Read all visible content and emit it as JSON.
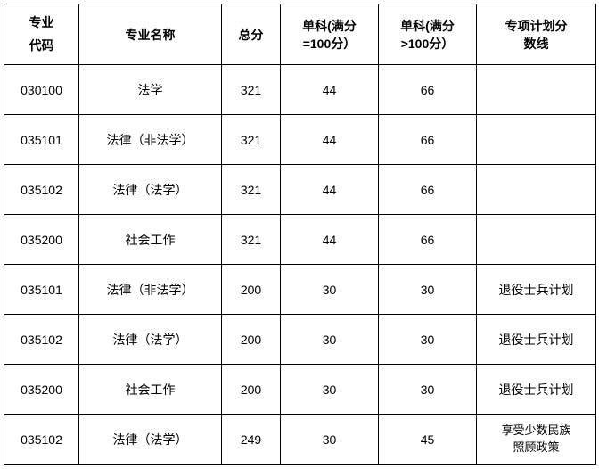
{
  "table": {
    "columns": [
      {
        "label_line1": "专业",
        "label_line2": "代码"
      },
      {
        "label": "专业名称"
      },
      {
        "label": "总分"
      },
      {
        "label_line1": "单科(满分",
        "label_line2": "=100分）"
      },
      {
        "label_line1": "单科(满分",
        "label_line2": ">100分）"
      },
      {
        "label_line1": "专项计划分",
        "label_line2": "数线"
      }
    ],
    "rows": [
      {
        "code": "030100",
        "name": "法学",
        "total": "321",
        "sub1": "44",
        "sub2": "66",
        "plan": ""
      },
      {
        "code": "035101",
        "name": "法律（非法学）",
        "total": "321",
        "sub1": "44",
        "sub2": "66",
        "plan": ""
      },
      {
        "code": "035102",
        "name": "法律（法学）",
        "total": "321",
        "sub1": "44",
        "sub2": "66",
        "plan": ""
      },
      {
        "code": "035200",
        "name": "社会工作",
        "total": "321",
        "sub1": "44",
        "sub2": "66",
        "plan": ""
      },
      {
        "code": "035101",
        "name": "法律（非法学）",
        "total": "200",
        "sub1": "30",
        "sub2": "30",
        "plan": "退役士兵计划"
      },
      {
        "code": "035102",
        "name": "法律（法学）",
        "total": "200",
        "sub1": "30",
        "sub2": "30",
        "plan": "退役士兵计划"
      },
      {
        "code": "035200",
        "name": "社会工作",
        "total": "200",
        "sub1": "30",
        "sub2": "30",
        "plan": "退役士兵计划"
      },
      {
        "code": "035102",
        "name": "法律（法学）",
        "total": "249",
        "sub1": "30",
        "sub2": "45",
        "plan_line1": "享受少数民族",
        "plan_line2": "照顾政策"
      }
    ],
    "border_color": "#000000",
    "background_color": "#ffffff",
    "header_fontsize": 14,
    "cell_fontsize": 14
  }
}
